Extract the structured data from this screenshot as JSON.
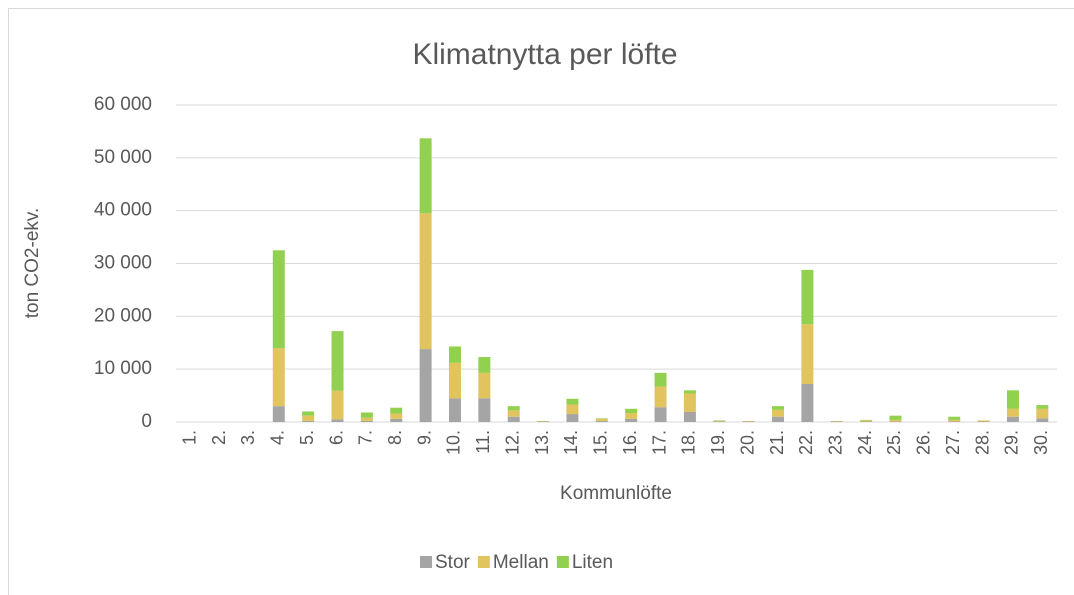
{
  "chart_data": {
    "type": "stacked_bar",
    "title": "Klimatnytta per löfte",
    "x_label": "Kommunlöfte",
    "y_label": "ton CO2-ekv.",
    "categories": [
      "1.",
      "2.",
      "3.",
      "4.",
      "5.",
      "6.",
      "7.",
      "8.",
      "9.",
      "10.",
      "11.",
      "12.",
      "13.",
      "14.",
      "15.",
      "16.",
      "17.",
      "18.",
      "19.",
      "20.",
      "21.",
      "22.",
      "23.",
      "24.",
      "25.",
      "26.",
      "27.",
      "28.",
      "29.",
      "30."
    ],
    "series": [
      {
        "name": "Stor",
        "color": "#a5a5a5",
        "values": [
          0,
          0,
          0,
          3000,
          200,
          500,
          200,
          600,
          13800,
          4500,
          4500,
          1000,
          100,
          1500,
          200,
          600,
          2800,
          1900,
          100,
          100,
          1000,
          7200,
          100,
          100,
          100,
          0,
          100,
          100,
          1000,
          700
        ]
      },
      {
        "name": "Mellan",
        "color": "#e2c45e",
        "values": [
          0,
          0,
          0,
          11000,
          1000,
          5400,
          600,
          1000,
          25700,
          6700,
          4800,
          1200,
          100,
          1800,
          400,
          1100,
          3900,
          3500,
          100,
          100,
          1300,
          11300,
          100,
          200,
          300,
          0,
          300,
          200,
          1500,
          1800
        ]
      },
      {
        "name": "Liten",
        "color": "#92d050",
        "values": [
          0,
          0,
          0,
          18500,
          800,
          11300,
          1000,
          1100,
          14200,
          3100,
          3000,
          800,
          0,
          1100,
          100,
          800,
          2600,
          600,
          100,
          0,
          700,
          10300,
          0,
          100,
          800,
          0,
          600,
          0,
          3500,
          700
        ]
      }
    ],
    "ylim": [
      0,
      60000
    ],
    "yticks": [
      0,
      {
        "value": 10000,
        "label": "10 000"
      },
      {
        "value": 20000,
        "label": "20 000"
      },
      {
        "value": 30000,
        "label": "30 000"
      },
      {
        "value": 40000,
        "label": "40 000"
      },
      {
        "value": 50000,
        "label": "50 000"
      },
      {
        "value": 60000,
        "label": "60 000"
      }
    ],
    "grid": true,
    "legend": "bottom"
  }
}
